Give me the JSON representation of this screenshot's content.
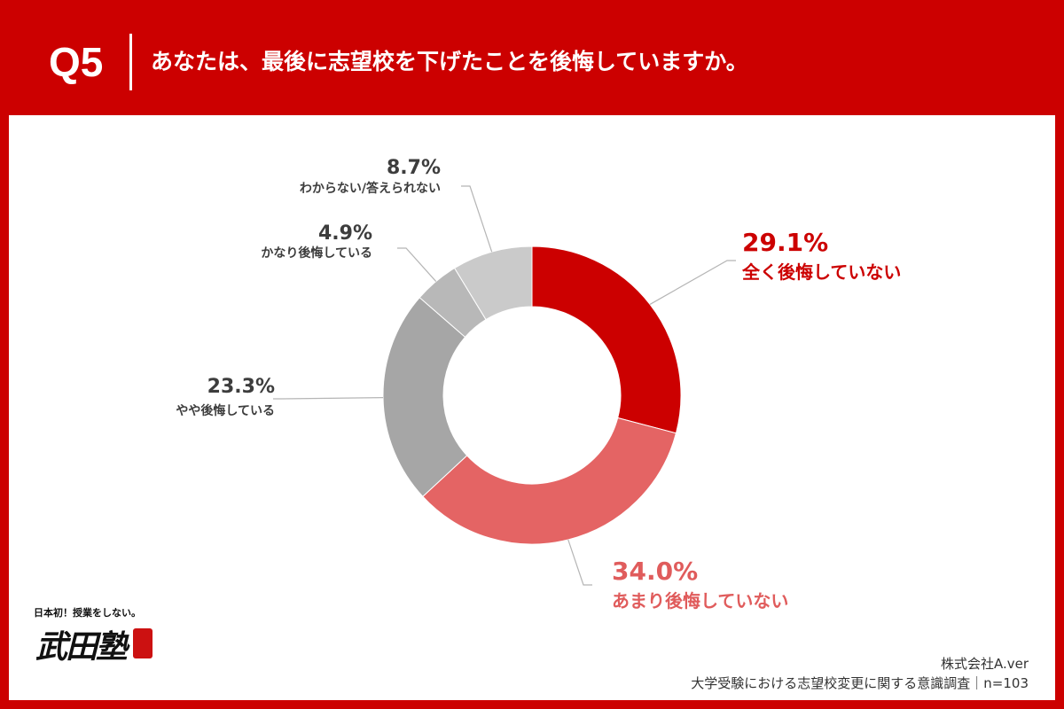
{
  "header": {
    "question_label": "Q5",
    "question_text": "あなたは、最後に志望校を下げたことを後悔していますか。"
  },
  "chart_data": {
    "type": "pie",
    "donut": true,
    "title": "",
    "categories": [
      "全く後悔していない",
      "あまり後悔していない",
      "やや後悔している",
      "かなり後悔している",
      "わからない/答えられない"
    ],
    "values": [
      29.1,
      34.0,
      23.3,
      4.9,
      8.7
    ],
    "value_labels": [
      "29.1%",
      "34.0%",
      "23.3%",
      "4.9%",
      "8.7%"
    ],
    "colors": [
      "#cc0000",
      "#e46464",
      "#a6a6a6",
      "#b8b8b8",
      "#cacaca"
    ],
    "label_colors": [
      "#cc0000",
      "#e05c5c",
      "#3d3d3d",
      "#3d3d3d",
      "#3d3d3d"
    ]
  },
  "logo": {
    "tagline": "日本初！授業をしない。",
    "name": "武田塾"
  },
  "footer": {
    "company": "株式会社A.ver",
    "survey": "大学受験における志望校変更に関する意識調査｜n=103"
  }
}
